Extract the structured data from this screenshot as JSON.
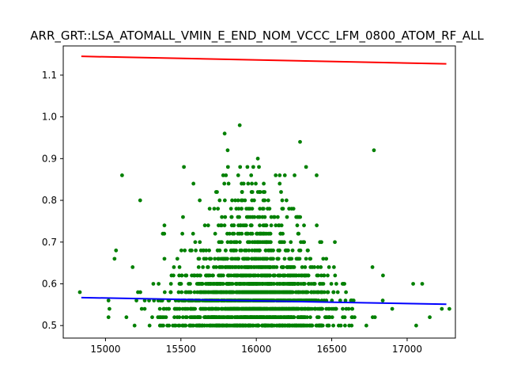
{
  "chart_data": {
    "type": "scatter",
    "title": "ARR_GRT::LSA_ATOMALL_VMIN_E_END_NOM_VCCC_LFM_0800_ATOM_RF_ALL",
    "xlabel": "",
    "ylabel": "",
    "xlim": [
      14720,
      17320
    ],
    "ylim": [
      0.47,
      1.17
    ],
    "grid": false,
    "x_ticks": [
      15000,
      15500,
      16000,
      16500,
      17000
    ],
    "y_ticks": [
      0.5,
      0.6,
      0.7,
      0.8,
      0.9,
      1.0,
      1.1
    ],
    "x_tick_labels": [
      "15000",
      "15500",
      "16000",
      "16500",
      "17000"
    ],
    "y_tick_labels": [
      "0.5",
      "0.6",
      "0.7",
      "0.8",
      "0.9",
      "1.0",
      "1.1"
    ],
    "colors": {
      "points": "#008000",
      "upper_line": "#ff0000",
      "lower_line": "#0000ff"
    },
    "lines": [
      {
        "color": "#ff0000",
        "x": [
          14840,
          17260
        ],
        "y": [
          1.145,
          1.127
        ]
      },
      {
        "color": "#0000ff",
        "x": [
          14840,
          17260
        ],
        "y": [
          0.567,
          0.551
        ]
      }
    ],
    "cloud": {
      "x_center": 15980,
      "x_spread": 300,
      "x_min": 15020,
      "x_max": 17270,
      "y_levels": [
        0.5,
        0.52,
        0.54,
        0.56,
        0.58,
        0.6,
        0.62,
        0.64,
        0.66,
        0.68,
        0.7,
        0.72,
        0.74,
        0.76,
        0.78,
        0.8,
        0.82,
        0.84,
        0.86,
        0.88
      ],
      "y_counts": [
        260,
        240,
        300,
        320,
        260,
        180,
        130,
        95,
        75,
        55,
        45,
        38,
        32,
        26,
        22,
        16,
        12,
        10,
        8,
        5
      ]
    },
    "points": [
      {
        "x": 15890,
        "y": 0.98
      },
      {
        "x": 15790,
        "y": 0.96
      },
      {
        "x": 16290,
        "y": 0.94
      },
      {
        "x": 15810,
        "y": 0.92
      },
      {
        "x": 16780,
        "y": 0.92
      },
      {
        "x": 16010,
        "y": 0.9
      },
      {
        "x": 15520,
        "y": 0.88
      },
      {
        "x": 16330,
        "y": 0.88
      },
      {
        "x": 15110,
        "y": 0.86
      },
      {
        "x": 16400,
        "y": 0.86
      },
      {
        "x": 15230,
        "y": 0.8
      },
      {
        "x": 15380,
        "y": 0.72
      },
      {
        "x": 15070,
        "y": 0.68
      },
      {
        "x": 15060,
        "y": 0.66
      },
      {
        "x": 14830,
        "y": 0.58
      },
      {
        "x": 17280,
        "y": 0.54
      },
      {
        "x": 17230,
        "y": 0.54
      },
      {
        "x": 17150,
        "y": 0.52
      },
      {
        "x": 17060,
        "y": 0.5
      },
      {
        "x": 17040,
        "y": 0.6
      },
      {
        "x": 17100,
        "y": 0.6
      },
      {
        "x": 16770,
        "y": 0.64
      },
      {
        "x": 16840,
        "y": 0.62
      },
      {
        "x": 15180,
        "y": 0.64
      }
    ]
  }
}
